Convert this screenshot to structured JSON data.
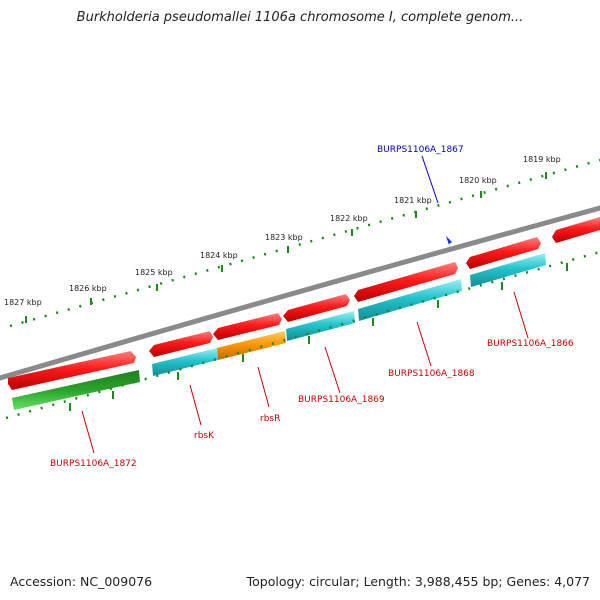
{
  "title": "Burkholderia pseudomallei 1106a chromosome I, complete genom...",
  "footer": {
    "accession": "Accession: NC_009076",
    "info": "Topology: circular; Length: 3,988,455 bp; Genes: 4,077"
  },
  "colors": {
    "backbone": "#8a8a8a",
    "ticks": "#1a8a1a",
    "red_gene": "#ee1111",
    "cyan_gene": "#22c4cc",
    "orange_gene": "#ff8c00",
    "green_gene": "#33bb33",
    "label_red": "#cc0000",
    "label_blue": "#0000bb"
  },
  "scale_labels": [
    "1827 kbp",
    "1826 kbp",
    "1825 kbp",
    "1824 kbp",
    "1823 kbp",
    "1822 kbp",
    "1821 kbp",
    "1820 kbp",
    "1819 kbp"
  ],
  "gene_labels": {
    "burps1106a_1867": "BURPS1106A_1867",
    "burps1106a_1866": "BURPS1106A_1866",
    "burps1106a_1868": "BURPS1106A_1868",
    "burps1106a_1869": "BURPS1106A_1869",
    "rbsr": "rbsR",
    "rbsk": "rbsK",
    "burps1106a_1872": "BURPS1106A_1872"
  }
}
